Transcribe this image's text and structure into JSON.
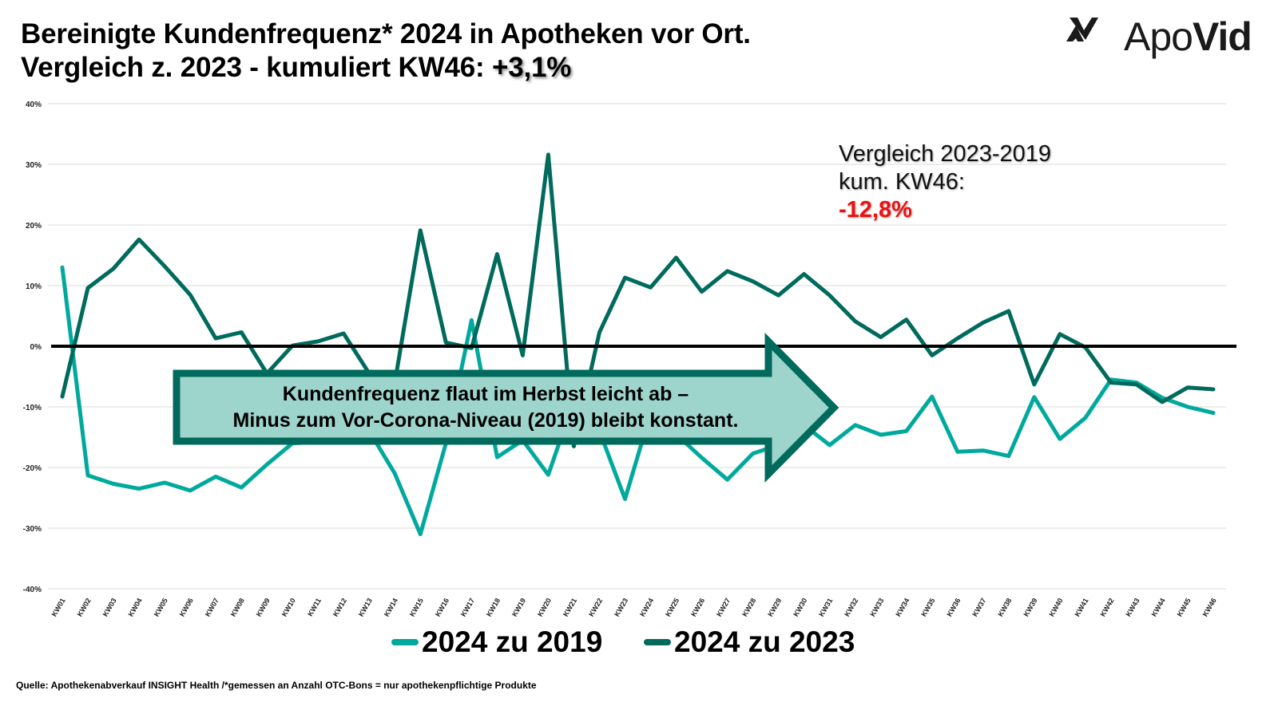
{
  "header": {
    "title_line1": "Bereinigte Kundenfrequenz* 2024 in Apotheken vor Ort.",
    "title_line2_prefix": "Vergleich z. 2023 - kumuliert KW46: ",
    "title_line2_value": "+3,1%"
  },
  "logo": {
    "icon": "apovid-logo-icon",
    "text_regular": "Apo",
    "text_bold": "Vid"
  },
  "note": {
    "line1": "Vergleich 2023-2019",
    "line2": "kum. KW46:",
    "value": "-12,8%",
    "value_color": "#ee1111"
  },
  "callout": {
    "line1": "Kundenfrequenz flaut im Herbst leicht ab –",
    "line2": "Minus zum Vor-Corona-Niveau (2019) bleibt konstant.",
    "fill_color": "#9dd4cc",
    "border_color": "#006b5c"
  },
  "source": "Quelle: Apothekenabverkauf INSIGHT Health /*gemessen an Anzahl OTC-Bons = nur apothekenpflichtige Produkte",
  "chart_data": {
    "type": "line",
    "title": "Bereinigte Kundenfrequenz* 2024 in Apotheken vor Ort.",
    "xlabel": "",
    "ylabel": "",
    "ylim": [
      -40,
      40
    ],
    "yticks": [
      40,
      30,
      20,
      10,
      0,
      -10,
      -20,
      -30,
      -40
    ],
    "ytick_labels": [
      "40%",
      "30%",
      "20%",
      "10%",
      "0%",
      "-10%",
      "-20%",
      "-30%",
      "-40%"
    ],
    "grid": true,
    "legend_position": "bottom",
    "categories": [
      "KW01",
      "KW02",
      "KW03",
      "KW04",
      "KW05",
      "KW06",
      "KW07",
      "KW08",
      "KW09",
      "KW10",
      "KW11",
      "KW12",
      "KW13",
      "KW14",
      "KW15",
      "KW16",
      "KW17",
      "KW18",
      "KW19",
      "KW20",
      "KW21",
      "KW22",
      "KW23",
      "KW24",
      "KW25",
      "KW26",
      "KW27",
      "KW28",
      "KW29",
      "KW30",
      "KW31",
      "KW32",
      "KW33",
      "KW34",
      "KW35",
      "KW36",
      "KW37",
      "KW38",
      "KW39",
      "KW40",
      "KW41",
      "KW42",
      "KW43",
      "KW44",
      "KW45",
      "KW46"
    ],
    "series": [
      {
        "name": "2024 zu 2019",
        "color": "#00a99d",
        "values": [
          13.0,
          -21.3,
          -22.7,
          -23.5,
          -22.5,
          -23.8,
          -21.5,
          -23.3,
          -19.5,
          -16.0,
          -15.8,
          -15.0,
          -14.0,
          -21.0,
          -31.0,
          -16.0,
          4.3,
          -18.3,
          -15.5,
          -21.2,
          -9.0,
          -14.0,
          -25.2,
          -11.0,
          -14.5,
          -18.4,
          -22.0,
          -17.7,
          -16.3,
          -13.0,
          -16.3,
          -13.0,
          -14.6,
          -14.0,
          -8.3,
          -17.4,
          -17.2,
          -18.1,
          -8.4,
          -15.3,
          -11.8,
          -5.5,
          -6.0,
          -8.5,
          -10.0,
          -11.0
        ]
      },
      {
        "name": "2024 zu 2023",
        "color": "#006b5c",
        "values": [
          -8.3,
          9.6,
          12.8,
          17.6,
          13.2,
          8.5,
          1.3,
          2.3,
          -4.5,
          0.1,
          0.8,
          2.1,
          -4.5,
          -6.0,
          19.1,
          0.6,
          -0.3,
          15.2,
          -1.5,
          31.6,
          -16.5,
          2.3,
          11.3,
          9.7,
          14.6,
          9.0,
          12.4,
          10.7,
          8.4,
          11.9,
          8.4,
          4.1,
          1.5,
          4.4,
          -1.5,
          1.3,
          3.9,
          5.8,
          -6.3,
          2.0,
          -0.2,
          -6.0,
          -6.3,
          -9.2,
          -6.8,
          -7.1
        ]
      }
    ]
  }
}
